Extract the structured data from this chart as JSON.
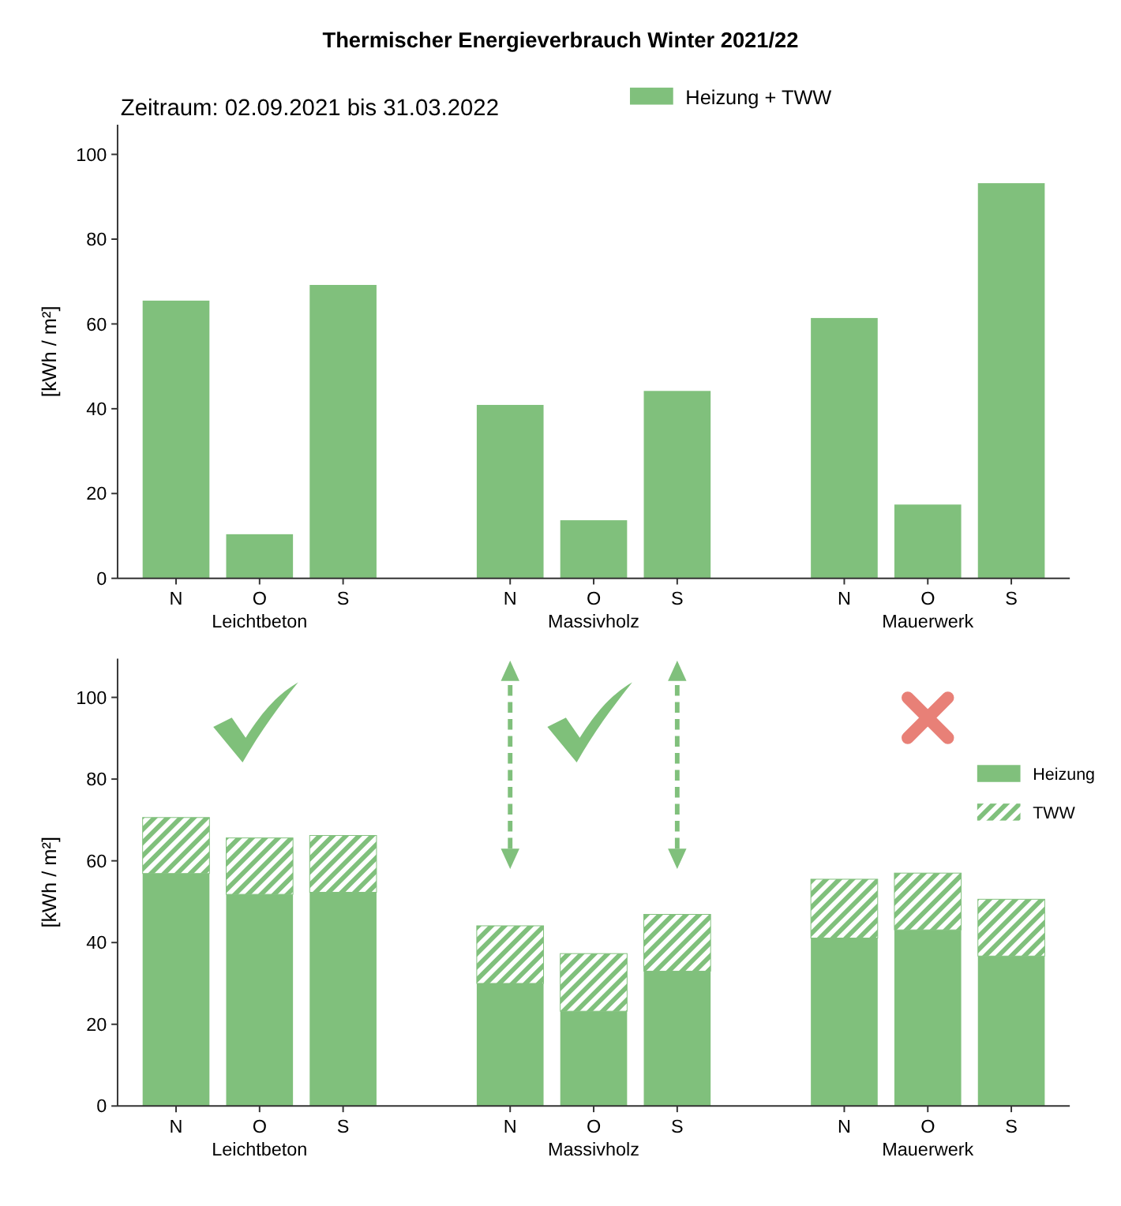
{
  "chart_data": [
    {
      "type": "bar",
      "title": "Thermischer Energieverbrauch Winter 2021/22",
      "subtitle": "Zeitraum: 02.09.2021 bis 31.03.2022",
      "ylabel": "[kWh / m²]",
      "categories": [
        "N",
        "O",
        "S",
        "N",
        "O",
        "S",
        "N",
        "O",
        "S"
      ],
      "annotations": [
        "Leichtbeton",
        "Massivholz",
        "Mauerwerk"
      ],
      "series": [
        {
          "name": "Heizung + TWW",
          "color": "#80c07c",
          "values": [
            65.5,
            10.4,
            69.2,
            40.9,
            13.7,
            44.2,
            61.4,
            17.4,
            93.2
          ]
        }
      ],
      "ylim": [
        0,
        107
      ],
      "yticks": [
        0,
        20,
        40,
        60,
        80,
        100
      ],
      "grid": false,
      "legend": "top right"
    },
    {
      "type": "bar",
      "ylabel": "[kWh / m²]",
      "categories": [
        "N",
        "O",
        "S",
        "N",
        "O",
        "S",
        "N",
        "O",
        "S"
      ],
      "annotations": [
        "Leichtbeton",
        "Massivholz",
        "Mauerwerk"
      ],
      "stacked": true,
      "series": [
        {
          "name": "Heizung",
          "color": "#80c07c",
          "values": [
            56.9,
            51.8,
            52.3,
            30.0,
            23.2,
            33.0,
            41.1,
            43.1,
            36.7
          ]
        },
        {
          "name": "TWW",
          "color": "#80c07c",
          "values": [
            13.7,
            13.8,
            13.9,
            14.1,
            14.1,
            13.9,
            14.4,
            13.9,
            13.9
          ]
        }
      ],
      "ylim": [
        0,
        109.5
      ],
      "yticks": [
        0,
        20,
        40,
        60,
        80,
        100
      ],
      "grid": false,
      "legend": "right"
    }
  ]
}
